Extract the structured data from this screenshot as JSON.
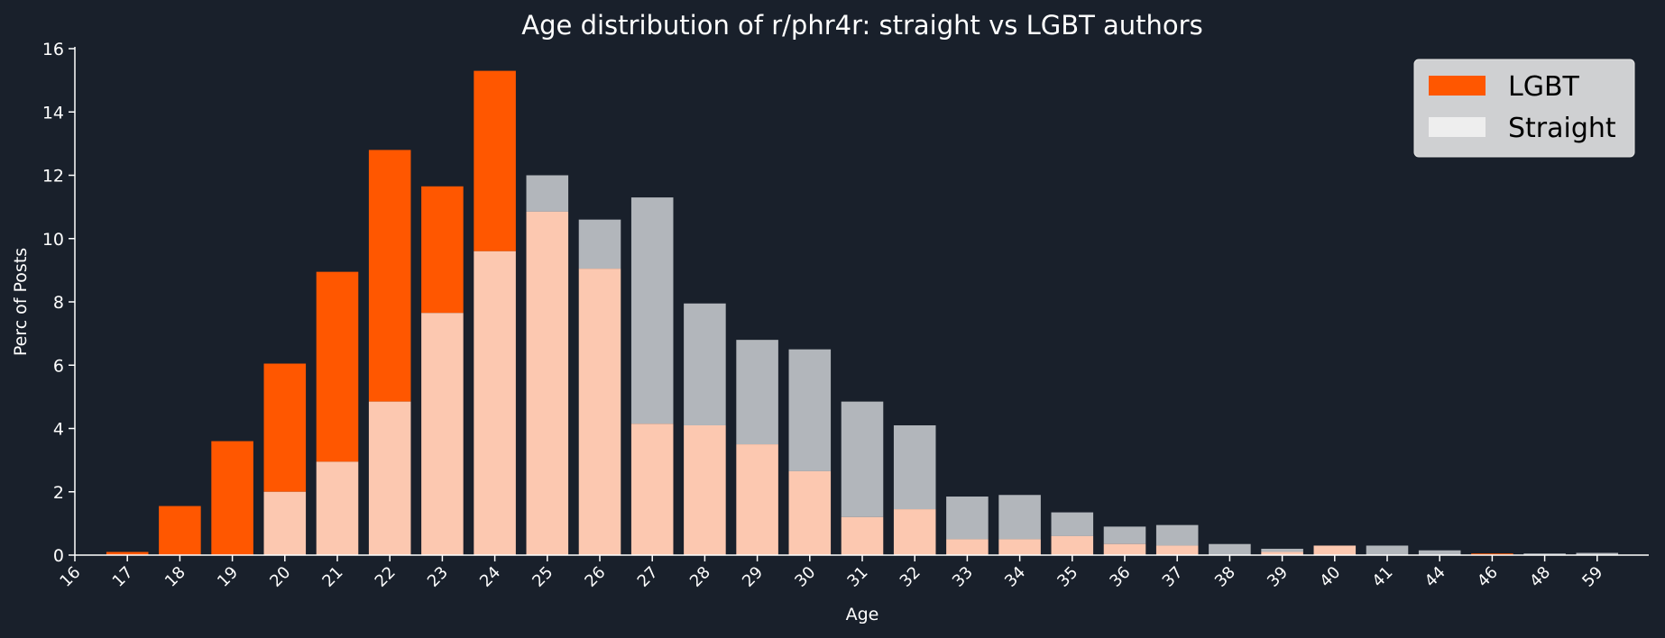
{
  "chart_data": {
    "type": "bar",
    "title": "Age distribution of r/phr4r: straight vs LGBT authors",
    "xlabel": "Age",
    "ylabel": "Perc of Posts",
    "ylim": [
      0,
      16
    ],
    "yticks": [
      0,
      2,
      4,
      6,
      8,
      10,
      12,
      14,
      16
    ],
    "categories": [
      "16",
      "17",
      "18",
      "19",
      "20",
      "21",
      "22",
      "23",
      "24",
      "25",
      "26",
      "27",
      "28",
      "29",
      "30",
      "31",
      "32",
      "33",
      "34",
      "35",
      "36",
      "37",
      "38",
      "39",
      "40",
      "41",
      "44",
      "46",
      "48",
      "59"
    ],
    "series": [
      {
        "name": "LGBT",
        "color": "#ff5700",
        "values": [
          0,
          0.1,
          1.55,
          3.6,
          6.05,
          8.95,
          12.8,
          11.65,
          15.3,
          10.85,
          9.05,
          4.15,
          4.1,
          3.5,
          2.65,
          1.2,
          1.45,
          0.5,
          0.5,
          0.6,
          0.35,
          0.3,
          0,
          0.1,
          0.3,
          0,
          0,
          0.05,
          0,
          0
        ]
      },
      {
        "name": "Straight",
        "color": "#eeeeee",
        "values": [
          0,
          0,
          0,
          0,
          2.0,
          2.95,
          4.85,
          7.65,
          9.6,
          12.0,
          10.6,
          11.3,
          7.95,
          6.8,
          6.5,
          4.85,
          4.1,
          1.85,
          1.9,
          1.35,
          0.9,
          0.95,
          0.35,
          0.2,
          0.3,
          0.3,
          0.15,
          0,
          0.05,
          0.07
        ]
      }
    ],
    "legend_position": "top-right",
    "grid": false
  },
  "colors": {
    "background": "#19202b",
    "axis": "#ffffff",
    "text": "#ffffff",
    "overlap": "#fcc8b0",
    "straight_only": "#b2b6bb",
    "legend_bg": "#cfd0d2"
  }
}
